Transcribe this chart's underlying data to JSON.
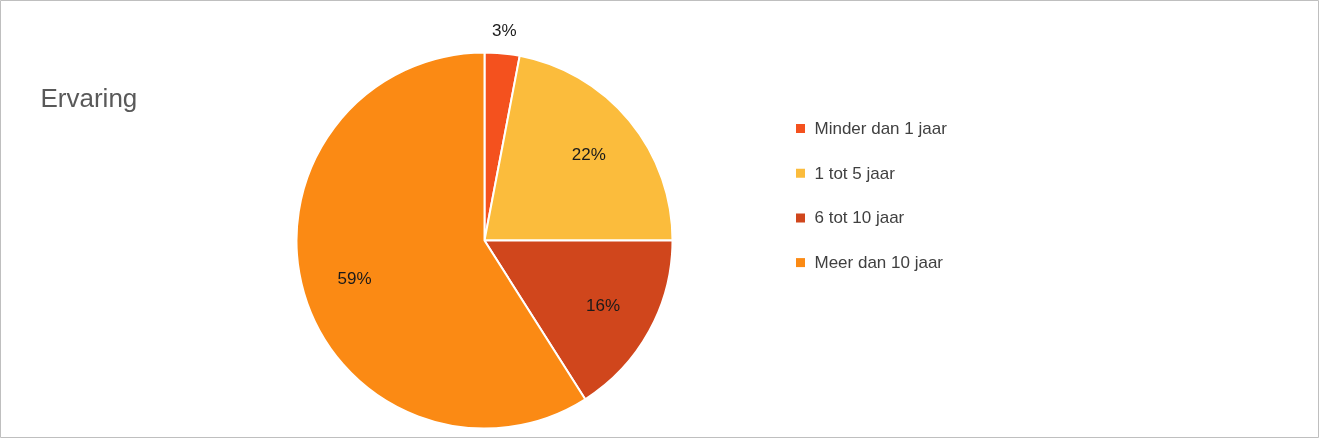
{
  "chart_data": {
    "type": "pie",
    "title": "Ervaring",
    "categories": [
      "Minder dan 1 jaar",
      "1 tot 5 jaar",
      "6 tot 10 jaar",
      "Meer dan 10 jaar"
    ],
    "values": [
      3,
      22,
      16,
      59
    ],
    "colors": [
      "#f4511e",
      "#fbbc3c",
      "#d0461c",
      "#fb8a14"
    ],
    "value_labels": [
      "3%",
      "22%",
      "16%",
      "59%"
    ],
    "legend": "right"
  }
}
